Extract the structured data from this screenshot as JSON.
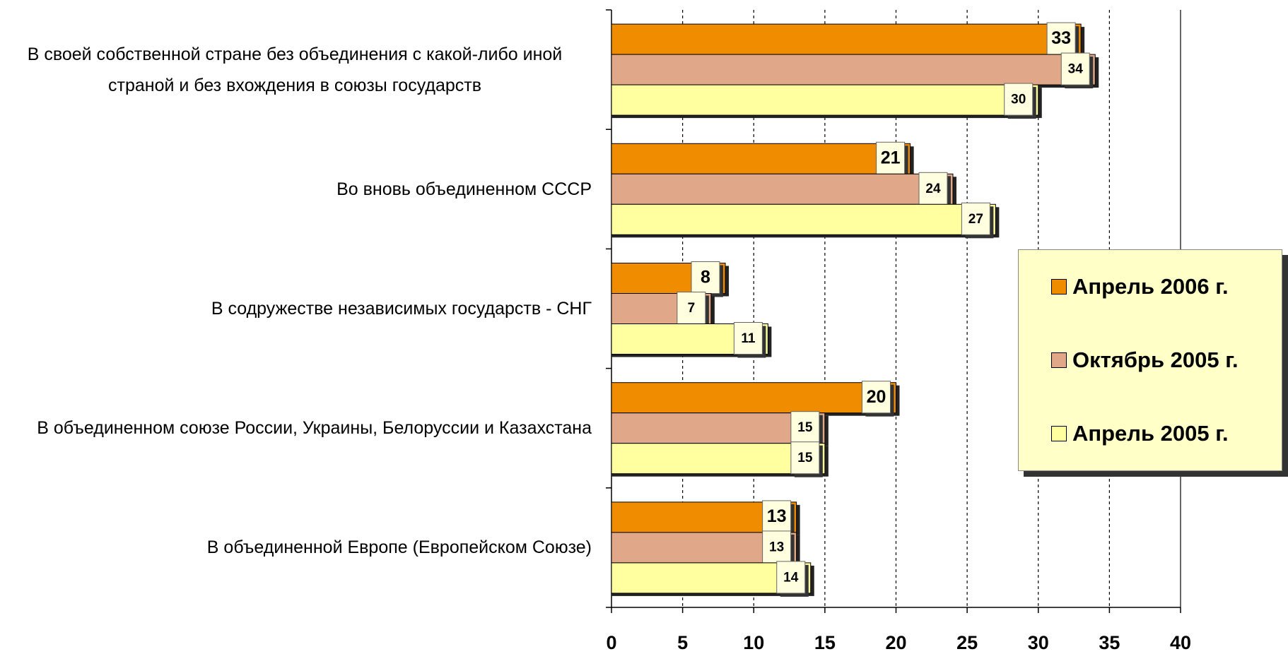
{
  "chart_data": {
    "type": "bar",
    "orientation": "horizontal",
    "categories": [
      "В своей собственной стране без объединения с какой-либо иной страной и без вхождения в союзы государств",
      "Во вновь объединенном СССР",
      "В содружестве независимых государств - СНГ",
      "В объединенном союзе России, Украины, Белоруссии и Казахстана",
      "В объединенной Европе (Европейском Союзе)"
    ],
    "series": [
      {
        "name": "Апрель 2006 г.",
        "color": "#f08c00",
        "values": [
          33,
          21,
          8,
          20,
          13
        ]
      },
      {
        "name": "Октябрь 2005 г.",
        "color": "#e0a888",
        "values": [
          34,
          24,
          7,
          15,
          13
        ]
      },
      {
        "name": "Апрель 2005 г.",
        "color": "#ffffa0",
        "values": [
          30,
          27,
          11,
          15,
          14
        ]
      }
    ],
    "xlim": [
      0,
      40
    ],
    "xticks": [
      0,
      5,
      10,
      15,
      20,
      25,
      30,
      35,
      40
    ],
    "grid": true,
    "legend": "right"
  }
}
